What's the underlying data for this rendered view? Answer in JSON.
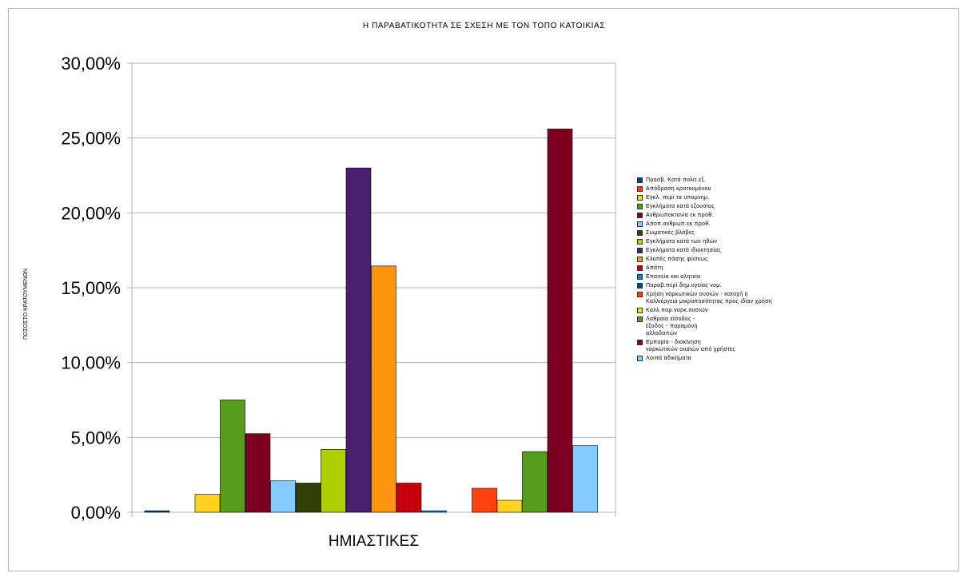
{
  "chart_data": {
    "type": "bar",
    "title": "Η ΠΑΡΑΒΑΤΙΚΟΤΗΤΑ ΣΕ ΣΧΕΣΗ ΜΕ ΤΟΝ ΤΟΠΟ ΚΑΤΟΙΚΙΑΣ",
    "ylabel": "ΠΟΣΟΣΤΟ ΚΡΑΤΟΥΜΕΝΩΝ",
    "categories": [
      "ΗΜΙΑΣΤΙΚΕΣ"
    ],
    "ylim": [
      0,
      30
    ],
    "yticks": [
      "0,00%",
      "5,00%",
      "10,00%",
      "15,00%",
      "20,00%",
      "25,00%",
      "30,00%"
    ],
    "grid": true,
    "legend_position": "right",
    "series": [
      {
        "name": "Προσβ. Κατά πολιτ.εξ.",
        "values": [
          0.1
        ],
        "color": "#004586"
      },
      {
        "name": "Απόδραση κρατουμένου",
        "values": [
          0
        ],
        "color": "#ff420e"
      },
      {
        "name": "Εγκλ. περί τα υπομνημ.",
        "values": [
          1.2
        ],
        "color": "#ffd320"
      },
      {
        "name": "Εγκλήματα κατά εξουσίας",
        "values": [
          7.5
        ],
        "color": "#579d1c"
      },
      {
        "name": "Ανθρωποκτονία εκ προθ.",
        "values": [
          5.25
        ],
        "color": "#7e0021"
      },
      {
        "name": "Αποπ.ανθρωπ.εκ προθ.",
        "values": [
          2.1
        ],
        "color": "#83caff"
      },
      {
        "name": "Σωματικές βλάβες",
        "values": [
          1.95
        ],
        "color": "#314004"
      },
      {
        "name": "Εγκλήματα κατά των ηθών",
        "values": [
          4.2
        ],
        "color": "#aecf00"
      },
      {
        "name": "Εγκλήματα κατά ιδιοκτησίας",
        "values": [
          23.0
        ],
        "color": "#4b1f6f"
      },
      {
        "name": "Κλοπές πάσης φύσεως",
        "values": [
          16.45
        ],
        "color": "#ff950e"
      },
      {
        "name": "Απάτη",
        "values": [
          1.95
        ],
        "color": "#c5000b"
      },
      {
        "name": "Επαιτεία και αλητεία",
        "values": [
          0.1
        ],
        "color": "#0084d1"
      },
      {
        "name": "Παραβ.περί δημ.υγείας νομ.",
        "values": [
          0
        ],
        "color": "#004586"
      },
      {
        "name": "Χρήση ναρκωτικών ουσιών - κατοχή ή\nΚαλλιέργεια μικροποσότητας προς ιδίαν χρήση",
        "values": [
          1.6
        ],
        "color": "#ff420e"
      },
      {
        "name": "Καλλ.παρ.ναρκ.ουσιών",
        "values": [
          0.8
        ],
        "color": "#ffd320"
      },
      {
        "name": "Λαθραία είσοδος -\n έξοδος - παραμονή\n αλλοδαπών",
        "values": [
          4.05
        ],
        "color": "#579d1c"
      },
      {
        "name": "Εμπορία - διακίνηση\nναρκωτικών ουσιών από χρήστες",
        "values": [
          25.6
        ],
        "color": "#7e0021"
      },
      {
        "name": "Λοιπά αδικήματα",
        "values": [
          4.45
        ],
        "color": "#83caff"
      }
    ]
  }
}
